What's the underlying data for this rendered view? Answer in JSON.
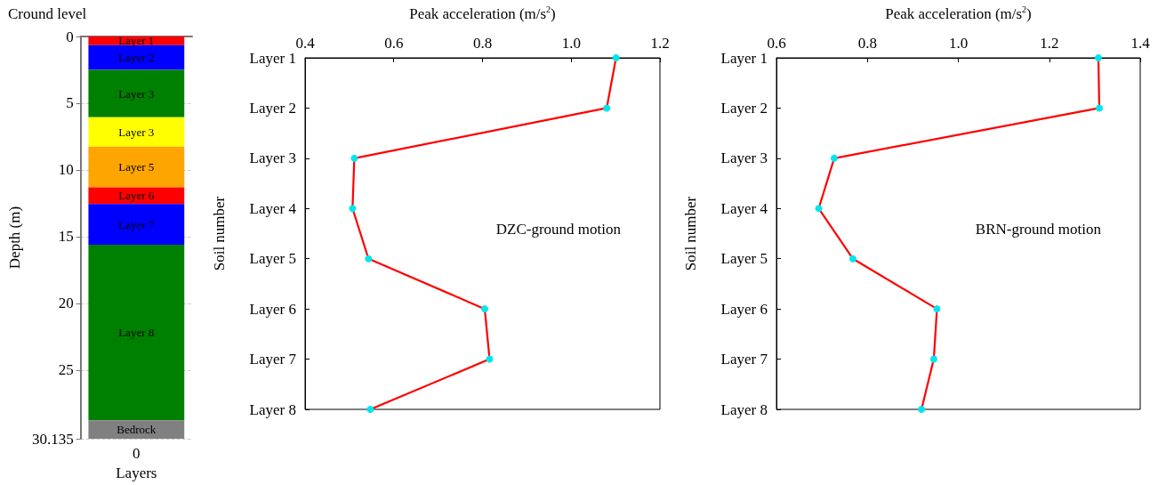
{
  "chart_data": [
    {
      "type": "bar",
      "title": "Cround level",
      "xlabel": "Layers",
      "ylabel": "Depth (m)",
      "categories": [
        "0"
      ],
      "stacked": true,
      "ylim": [
        30.135,
        0
      ],
      "yticks": [
        0,
        5,
        10,
        15,
        20,
        25,
        30.135
      ],
      "grid": "y",
      "series": [
        {
          "name": "Layer 1",
          "color": "#ff0000",
          "values": [
            0.65
          ]
        },
        {
          "name": "Layer 2",
          "color": "#0000ff",
          "values": [
            1.85
          ]
        },
        {
          "name": "Layer 3",
          "color": "#008000",
          "values": [
            3.55
          ]
        },
        {
          "name": "Layer 3",
          "color": "#ffff00",
          "values": [
            2.2
          ]
        },
        {
          "name": "Layer 5",
          "color": "#ffa500",
          "values": [
            3.05
          ]
        },
        {
          "name": "Layer 6",
          "color": "#ff0000",
          "values": [
            1.25
          ]
        },
        {
          "name": "Layer 7",
          "color": "#0000ff",
          "values": [
            3.05
          ]
        },
        {
          "name": "Layer 8",
          "color": "#008000",
          "values": [
            13.15
          ]
        },
        {
          "name": "Bedrock",
          "color": "#808080",
          "values": [
            1.385
          ]
        }
      ]
    },
    {
      "type": "line",
      "orientation": "horizontal",
      "xlabel": "Peak acceleration (m/s$^{2}$)",
      "ylabel": "Soil number",
      "categories": [
        "Layer 1",
        "Layer 2",
        "Layer 3",
        "Layer 4",
        "Layer 5",
        "Layer 6",
        "Layer 7",
        "Layer 8"
      ],
      "xlim": [
        0.4,
        1.2
      ],
      "xticks": [
        0.4,
        0.6,
        0.8,
        {
          "value": 1.0,
          "label": "1.0"
        },
        1.2
      ],
      "marker": "circle",
      "annotations": [
        "DZC-ground motion"
      ],
      "values": [
        1.101,
        1.08,
        0.511,
        0.507,
        0.543,
        0.805,
        0.816,
        0.547
      ],
      "color": "#ff0000",
      "colors": [
        "#00e5ee",
        "#00e5ee",
        "#00e5ee",
        "#00e5ee",
        "#00e5ee",
        "#00e5ee",
        "#00e5ee",
        "#00e5ee"
      ]
    },
    {
      "type": "line",
      "orientation": "horizontal",
      "xlabel": "Peak acceleration (m/s$^{2}$)",
      "ylabel": "Soil number",
      "categories": [
        "Layer 1",
        "Layer 2",
        "Layer 3",
        "Layer 4",
        "Layer 5",
        "Layer 6",
        "Layer 7",
        "Layer 8"
      ],
      "xlim": [
        0.6,
        1.4
      ],
      "xticks": [
        0.6,
        0.8,
        {
          "value": 1.0,
          "label": "1.0"
        },
        1.2,
        1.4
      ],
      "marker": "circle",
      "annotations": [
        "BRN-ground motion"
      ],
      "values": [
        1.308,
        1.31,
        0.727,
        0.693,
        0.768,
        0.953,
        0.946,
        0.919
      ],
      "color": "#ff0000",
      "colors": [
        "#00e5ee",
        "#00e5ee",
        "#00e5ee",
        "#00e5ee",
        "#00e5ee",
        "#00e5ee",
        "#00e5ee",
        "#00e5ee"
      ]
    }
  ]
}
